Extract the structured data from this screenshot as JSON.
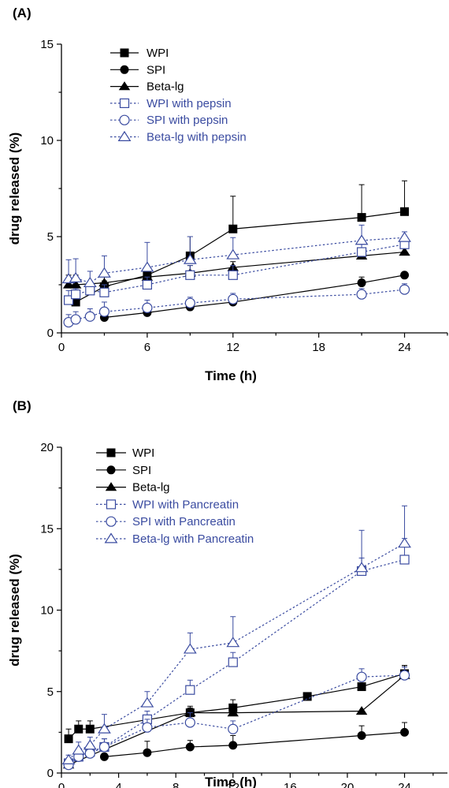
{
  "chart_data": [
    {
      "panel_label": "(A)",
      "type": "line",
      "xlabel": "Time (h)",
      "ylabel": "drug released (%)",
      "xlim": [
        0,
        27
      ],
      "ylim": [
        0,
        15
      ],
      "xticks": [
        0,
        6,
        12,
        18,
        24
      ],
      "yticks": [
        0,
        5,
        10,
        15
      ],
      "error_bars": true,
      "legend_position": "top-center",
      "series": [
        {
          "name": "WPI",
          "marker": "filled-square",
          "line": "solid",
          "color": "#000000",
          "x": [
            1,
            3,
            6,
            9,
            12,
            21,
            24
          ],
          "y": [
            1.6,
            2.4,
            3.0,
            4.0,
            5.4,
            6.0,
            6.3
          ],
          "err": [
            0,
            0.3,
            0.4,
            1.0,
            1.7,
            1.7,
            1.6
          ]
        },
        {
          "name": "SPI",
          "marker": "filled-circle",
          "line": "solid",
          "color": "#000000",
          "x": [
            3,
            6,
            9,
            12,
            21,
            24
          ],
          "y": [
            0.8,
            1.05,
            1.35,
            1.6,
            2.6,
            3.0
          ],
          "err": [
            0,
            0.1,
            0.2,
            0.25,
            0.3,
            0
          ]
        },
        {
          "name": "Beta-lg",
          "marker": "filled-triangle",
          "line": "solid",
          "color": "#000000",
          "x": [
            0.5,
            1,
            3,
            6,
            9,
            12,
            21,
            24
          ],
          "y": [
            2.5,
            2.5,
            2.6,
            2.9,
            3.1,
            3.4,
            4.0,
            4.2
          ],
          "err": [
            0.5,
            0.5,
            0.4,
            0.4,
            0.4,
            0.3,
            0.2,
            0
          ]
        },
        {
          "name": "WPI with pepsin",
          "marker": "open-square",
          "line": "dotted",
          "color": "#3a4ba0",
          "x": [
            0.5,
            1,
            2,
            3,
            6,
            9,
            12,
            21,
            24
          ],
          "y": [
            1.7,
            2.0,
            2.2,
            2.1,
            2.5,
            3.0,
            3.0,
            4.2,
            4.6
          ],
          "err": [
            0.5,
            0.3,
            0.3,
            0.4,
            0.4,
            0.5,
            0.5,
            0.4,
            0.3
          ]
        },
        {
          "name": "SPI with pepsin",
          "marker": "open-circle",
          "line": "dotted",
          "color": "#3a4ba0",
          "x": [
            0.5,
            1,
            2,
            3,
            6,
            9,
            12,
            21,
            24
          ],
          "y": [
            0.55,
            0.7,
            0.85,
            1.1,
            1.3,
            1.55,
            1.75,
            2.0,
            2.25
          ],
          "err": [
            0.4,
            0.4,
            0.4,
            0.5,
            0.4,
            0.3,
            0.3,
            0.3,
            0.3
          ]
        },
        {
          "name": "Beta-lg with pepsin",
          "marker": "open-triangle",
          "line": "dotted",
          "color": "#3a4ba0",
          "x": [
            0.5,
            1,
            2,
            3,
            6,
            9,
            12,
            21,
            24
          ],
          "y": [
            2.8,
            2.85,
            2.6,
            3.1,
            3.4,
            3.8,
            4.05,
            4.8,
            4.95
          ],
          "err": [
            1.0,
            1.0,
            0.6,
            0.9,
            1.3,
            1.2,
            0.9,
            0.8,
            0.3
          ]
        }
      ]
    },
    {
      "panel_label": "(B)",
      "type": "line",
      "xlabel": "Time (h)",
      "ylabel": "drug released (%)",
      "xlim": [
        0,
        27
      ],
      "ylim": [
        0,
        20
      ],
      "xticks": [
        0,
        4,
        8,
        12,
        16,
        20,
        24
      ],
      "yticks": [
        0,
        5,
        10,
        15,
        20
      ],
      "error_bars": true,
      "legend_position": "top-center",
      "series": [
        {
          "name": "WPI",
          "marker": "filled-square",
          "line": "solid",
          "color": "#000000",
          "x": [
            0.5,
            1.2,
            2,
            9,
            12,
            17.2,
            21,
            24
          ],
          "y": [
            2.1,
            2.7,
            2.7,
            3.7,
            4.0,
            4.7,
            5.3,
            6.1
          ],
          "err": [
            0.6,
            0.5,
            0.5,
            0.3,
            0.5,
            0.2,
            0.2,
            0.5
          ]
        },
        {
          "name": "SPI",
          "marker": "filled-circle",
          "line": "solid",
          "color": "#000000",
          "x": [
            3,
            6,
            9,
            12,
            21,
            24
          ],
          "y": [
            1.0,
            1.25,
            1.6,
            1.7,
            2.3,
            2.5
          ],
          "err": [
            0.2,
            0.7,
            0.4,
            0.6,
            0.6,
            0.6
          ]
        },
        {
          "name": "Beta-lg",
          "marker": "filled-triangle",
          "line": "solid",
          "color": "#000000",
          "x": [
            0.5,
            9,
            12,
            21,
            24
          ],
          "y": [
            0.5,
            3.7,
            3.7,
            3.8,
            6.0
          ],
          "err": [
            0,
            0.4,
            0.4,
            0,
            0.6
          ]
        },
        {
          "name": "WPI with Pancreatin",
          "marker": "open-square",
          "line": "dotted",
          "color": "#3a4ba0",
          "x": [
            0.5,
            1.2,
            2,
            3,
            6,
            9,
            12,
            21,
            24
          ],
          "y": [
            0.6,
            1.0,
            1.3,
            1.6,
            3.3,
            5.1,
            6.8,
            12.4,
            13.1
          ],
          "err": [
            0.3,
            0.3,
            0.5,
            0.5,
            0.5,
            0.6,
            0.6,
            0.8,
            1.3
          ]
        },
        {
          "name": "SPI with Pancreatin",
          "marker": "open-circle",
          "line": "dotted",
          "color": "#3a4ba0",
          "x": [
            0.5,
            1.2,
            2,
            3,
            6,
            9,
            12,
            21,
            24
          ],
          "y": [
            0.5,
            1.0,
            1.2,
            1.6,
            2.8,
            3.1,
            2.7,
            5.9,
            6.0
          ],
          "err": [
            0.2,
            0.4,
            0.4,
            0.5,
            0.5,
            0.6,
            0.5,
            0.5,
            0.5
          ]
        },
        {
          "name": "Beta-lg with Pancreatin",
          "marker": "open-triangle",
          "line": "dotted",
          "color": "#3a4ba0",
          "x": [
            0.5,
            1.2,
            2,
            3,
            6,
            9,
            12,
            21,
            24
          ],
          "y": [
            0.8,
            1.4,
            1.7,
            2.7,
            4.3,
            7.6,
            8.0,
            12.6,
            14.1
          ],
          "err": [
            0.3,
            0.5,
            0.5,
            0.9,
            0.7,
            1.0,
            1.6,
            2.3,
            2.3
          ]
        }
      ]
    }
  ]
}
